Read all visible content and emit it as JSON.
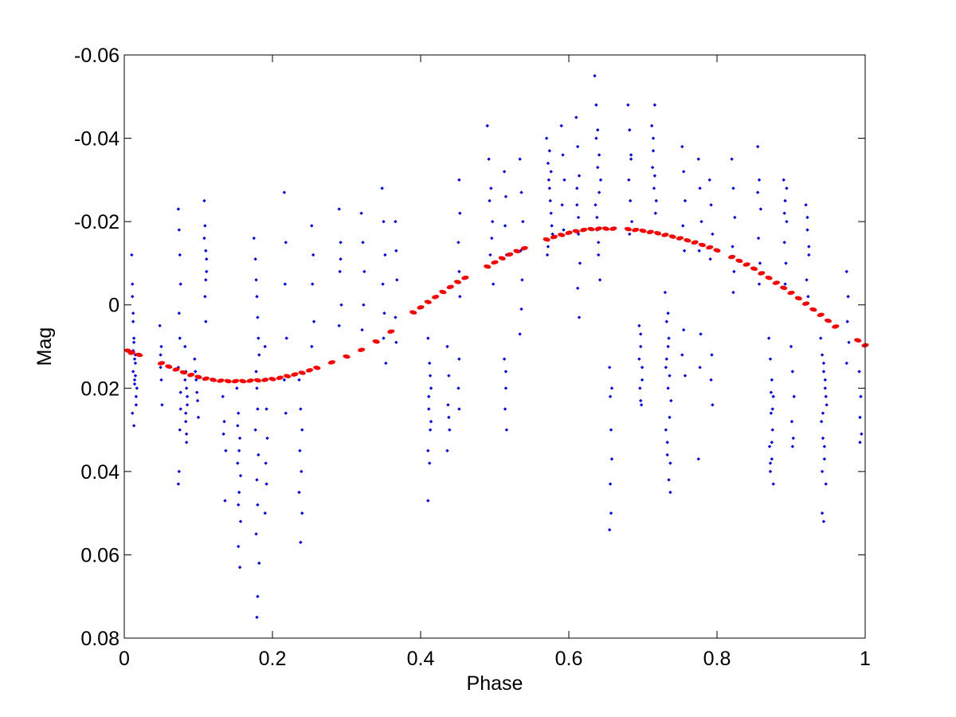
{
  "chart_data": {
    "type": "scatter",
    "title": "",
    "xlabel": "Phase",
    "ylabel": "Mag",
    "xlim": [
      0,
      1
    ],
    "ylim": [
      -0.06,
      0.08
    ],
    "y_reversed": true,
    "grid": false,
    "x_ticks": [
      0,
      0.2,
      0.4,
      0.6,
      0.8,
      1
    ],
    "x_tick_labels": [
      "0",
      "0.2",
      "0.4",
      "0.6",
      "0.8",
      "1"
    ],
    "y_ticks": [
      -0.06,
      -0.04,
      -0.02,
      0,
      0.02,
      0.04,
      0.06,
      0.08
    ],
    "y_tick_labels": [
      "-0.06",
      "-0.04",
      "-0.02",
      "0",
      "0.02",
      "0.04",
      "0.06",
      "0.08"
    ],
    "colors": {
      "observations": "#0000ff",
      "fit": "#ff0000",
      "axes": "#000000"
    },
    "series": [
      {
        "marker": "dot",
        "color": "#0000ff",
        "x": [
          0.01,
          0.011,
          0.012,
          0.013,
          0.015,
          0.012,
          0.014,
          0.016,
          0.011,
          0.013,
          0.012,
          0.015,
          0.014,
          0.017,
          0.013,
          0.012,
          0.011,
          0.016,
          0.015,
          0.014,
          0.048,
          0.049,
          0.05,
          0.051,
          0.049,
          0.05,
          0.073,
          0.074,
          0.075,
          0.076,
          0.074,
          0.075,
          0.073,
          0.076,
          0.075,
          0.074,
          0.073,
          0.076,
          0.082,
          0.083,
          0.084,
          0.085,
          0.083,
          0.084,
          0.082,
          0.085,
          0.083,
          0.084,
          0.095,
          0.097,
          0.099,
          0.1,
          0.098,
          0.096,
          0.108,
          0.109,
          0.11,
          0.111,
          0.109,
          0.11,
          0.108,
          0.111,
          0.11,
          0.133,
          0.135,
          0.137,
          0.134,
          0.136,
          0.152,
          0.154,
          0.156,
          0.153,
          0.155,
          0.157,
          0.154,
          0.156,
          0.153,
          0.155,
          0.157,
          0.154,
          0.175,
          0.177,
          0.178,
          0.179,
          0.18,
          0.181,
          0.182,
          0.178,
          0.179,
          0.18,
          0.177,
          0.181,
          0.179,
          0.18,
          0.178,
          0.182,
          0.18,
          0.179,
          0.19,
          0.191,
          0.192,
          0.193,
          0.191,
          0.192,
          0.19,
          0.216,
          0.218,
          0.217,
          0.219,
          0.216,
          0.218,
          0.236,
          0.238,
          0.24,
          0.237,
          0.239,
          0.236,
          0.24,
          0.238,
          0.253,
          0.255,
          0.254,
          0.256,
          0.253,
          0.29,
          0.292,
          0.291,
          0.293,
          0.29,
          0.292,
          0.32,
          0.322,
          0.324,
          0.323,
          0.321,
          0.348,
          0.35,
          0.352,
          0.349,
          0.351,
          0.35,
          0.353,
          0.366,
          0.367,
          0.368,
          0.366,
          0.367,
          0.41,
          0.412,
          0.414,
          0.411,
          0.413,
          0.41,
          0.412,
          0.414,
          0.411,
          0.413,
          0.41,
          0.436,
          0.438,
          0.437,
          0.439,
          0.436,
          0.438,
          0.452,
          0.453,
          0.451,
          0.452,
          0.453,
          0.452,
          0.451,
          0.452,
          0.49,
          0.492,
          0.495,
          0.497,
          0.493,
          0.496,
          0.494,
          0.498,
          0.513,
          0.515,
          0.514,
          0.516,
          0.513,
          0.515,
          0.514,
          0.516,
          0.515,
          0.534,
          0.536,
          0.538,
          0.535,
          0.537,
          0.536,
          0.534,
          0.57,
          0.572,
          0.574,
          0.576,
          0.578,
          0.571,
          0.573,
          0.575,
          0.577,
          0.572,
          0.574,
          0.576,
          0.59,
          0.592,
          0.594,
          0.591,
          0.593,
          0.61,
          0.612,
          0.614,
          0.611,
          0.613,
          0.615,
          0.612,
          0.614,
          0.611,
          0.613,
          0.635,
          0.637,
          0.639,
          0.641,
          0.643,
          0.636,
          0.638,
          0.64,
          0.642,
          0.637,
          0.639,
          0.641,
          0.638,
          0.64,
          0.655,
          0.656,
          0.657,
          0.658,
          0.656,
          0.657,
          0.655,
          0.658,
          0.68,
          0.682,
          0.684,
          0.681,
          0.683,
          0.685,
          0.682,
          0.684,
          0.695,
          0.697,
          0.699,
          0.696,
          0.698,
          0.697,
          0.695,
          0.699,
          0.697,
          0.712,
          0.714,
          0.716,
          0.718,
          0.713,
          0.715,
          0.717,
          0.714,
          0.716,
          0.73,
          0.732,
          0.734,
          0.736,
          0.738,
          0.731,
          0.733,
          0.735,
          0.737,
          0.732,
          0.734,
          0.736,
          0.733,
          0.735,
          0.731,
          0.737,
          0.734,
          0.753,
          0.755,
          0.757,
          0.754,
          0.756,
          0.755,
          0.753,
          0.757,
          0.775,
          0.777,
          0.779,
          0.776,
          0.778,
          0.777,
          0.775,
          0.79,
          0.792,
          0.794,
          0.791,
          0.793,
          0.792,
          0.794,
          0.82,
          0.822,
          0.824,
          0.821,
          0.823,
          0.822,
          0.855,
          0.857,
          0.859,
          0.856,
          0.858,
          0.857,
          0.855,
          0.87,
          0.872,
          0.874,
          0.876,
          0.873,
          0.875,
          0.871,
          0.874,
          0.872,
          0.876,
          0.873,
          0.875,
          0.874,
          0.872,
          0.89,
          0.892,
          0.894,
          0.891,
          0.893,
          0.892,
          0.894,
          0.891,
          0.9,
          0.902,
          0.904,
          0.901,
          0.903,
          0.902,
          0.92,
          0.922,
          0.924,
          0.921,
          0.923,
          0.922,
          0.924,
          0.94,
          0.942,
          0.944,
          0.946,
          0.948,
          0.941,
          0.943,
          0.945,
          0.947,
          0.942,
          0.944,
          0.946,
          0.943,
          0.945,
          0.944,
          0.947,
          0.942,
          0.975,
          0.977,
          0.976,
          0.978,
          0.975,
          0.992,
          0.994,
          0.993,
          0.995,
          0.993
        ],
        "y": [
          -0.012,
          -0.005,
          0.002,
          0.008,
          0.012,
          0.016,
          0.019,
          0.022,
          0.026,
          0.029,
          0.011,
          0.014,
          0.018,
          0.02,
          0.009,
          0.004,
          -0.002,
          0.024,
          0.017,
          0.013,
          0.005,
          0.012,
          0.018,
          0.024,
          0.015,
          0.01,
          -0.023,
          -0.018,
          -0.012,
          -0.005,
          0.002,
          0.008,
          0.015,
          0.021,
          0.03,
          0.04,
          0.043,
          0.025,
          0.01,
          0.016,
          0.02,
          0.024,
          0.028,
          0.033,
          0.018,
          0.022,
          0.026,
          0.031,
          0.013,
          0.018,
          0.023,
          0.027,
          0.021,
          0.016,
          -0.025,
          -0.019,
          -0.013,
          -0.008,
          -0.002,
          0.004,
          -0.016,
          -0.011,
          -0.006,
          0.022,
          0.028,
          0.035,
          0.031,
          0.047,
          0.02,
          0.026,
          0.032,
          0.038,
          0.045,
          0.052,
          0.058,
          0.063,
          0.029,
          0.035,
          0.041,
          0.048,
          -0.016,
          -0.011,
          -0.006,
          -0.002,
          0.003,
          0.008,
          0.012,
          0.016,
          0.02,
          0.025,
          0.03,
          0.036,
          0.042,
          0.048,
          0.055,
          0.062,
          0.07,
          0.075,
          0.01,
          0.018,
          0.025,
          0.032,
          0.038,
          0.043,
          0.05,
          -0.027,
          -0.015,
          -0.005,
          0.008,
          0.018,
          0.026,
          0.018,
          0.025,
          0.03,
          0.035,
          0.04,
          0.045,
          0.05,
          0.057,
          -0.019,
          -0.012,
          -0.005,
          0.004,
          0.01,
          -0.023,
          -0.015,
          -0.008,
          0.0,
          0.005,
          -0.011,
          -0.022,
          -0.015,
          -0.008,
          0.0,
          0.006,
          -0.028,
          -0.02,
          -0.012,
          -0.005,
          0.002,
          0.008,
          0.014,
          -0.02,
          -0.013,
          -0.006,
          0.003,
          0.009,
          0.008,
          0.014,
          0.02,
          0.025,
          0.03,
          0.035,
          0.038,
          0.028,
          0.022,
          0.017,
          0.047,
          0.01,
          0.017,
          0.024,
          0.03,
          0.035,
          0.027,
          -0.03,
          -0.022,
          -0.015,
          -0.008,
          -0.002,
          0.013,
          0.02,
          0.025,
          -0.043,
          -0.035,
          -0.028,
          -0.02,
          -0.025,
          -0.016,
          -0.012,
          -0.005,
          -0.032,
          -0.026,
          -0.019,
          -0.012,
          0.013,
          0.02,
          0.025,
          0.03,
          0.016,
          -0.035,
          -0.027,
          -0.02,
          -0.013,
          -0.006,
          0.001,
          0.007,
          -0.04,
          -0.034,
          -0.028,
          -0.022,
          -0.017,
          -0.012,
          -0.03,
          -0.025,
          -0.019,
          -0.014,
          -0.037,
          -0.032,
          -0.043,
          -0.036,
          -0.03,
          -0.024,
          -0.018,
          -0.045,
          -0.038,
          -0.031,
          -0.024,
          -0.017,
          -0.01,
          -0.004,
          0.003,
          -0.028,
          -0.021,
          -0.055,
          -0.048,
          -0.042,
          -0.036,
          -0.03,
          -0.024,
          -0.018,
          -0.012,
          -0.006,
          -0.04,
          -0.033,
          -0.027,
          -0.021,
          -0.015,
          0.015,
          0.022,
          0.03,
          0.037,
          0.043,
          0.05,
          0.054,
          0.02,
          -0.048,
          -0.042,
          -0.036,
          -0.03,
          -0.025,
          -0.02,
          -0.017,
          -0.035,
          0.005,
          0.01,
          0.015,
          0.02,
          0.024,
          0.007,
          0.013,
          0.018,
          0.023,
          -0.043,
          -0.037,
          -0.031,
          -0.025,
          -0.033,
          -0.028,
          -0.022,
          -0.04,
          -0.048,
          -0.003,
          0.004,
          0.01,
          0.017,
          0.023,
          0.03,
          0.036,
          0.042,
          0.045,
          0.013,
          0.02,
          0.027,
          0.033,
          0.008,
          0.015,
          0.038,
          0.002,
          -0.038,
          -0.032,
          -0.025,
          -0.019,
          -0.013,
          0.006,
          0.012,
          0.017,
          -0.035,
          -0.028,
          -0.02,
          -0.013,
          0.007,
          0.015,
          0.037,
          -0.03,
          -0.024,
          -0.017,
          -0.011,
          0.012,
          0.018,
          0.024,
          -0.035,
          -0.028,
          -0.021,
          -0.014,
          -0.008,
          -0.003,
          -0.038,
          -0.03,
          -0.023,
          -0.016,
          -0.01,
          -0.005,
          -0.027,
          0.008,
          0.013,
          0.018,
          0.022,
          0.026,
          0.03,
          0.034,
          0.037,
          0.04,
          0.043,
          0.021,
          0.025,
          0.033,
          0.038,
          -0.03,
          -0.025,
          -0.02,
          -0.015,
          -0.01,
          -0.005,
          -0.028,
          -0.022,
          0.01,
          0.016,
          0.022,
          0.028,
          0.032,
          0.034,
          -0.024,
          -0.018,
          -0.012,
          -0.006,
          -0.002,
          -0.021,
          -0.014,
          0.008,
          0.012,
          0.016,
          0.02,
          0.024,
          0.028,
          0.032,
          0.037,
          0.043,
          0.05,
          0.052,
          0.018,
          0.026,
          0.034,
          0.014,
          0.022,
          0.04,
          -0.008,
          -0.002,
          0.004,
          0.009,
          0.014,
          0.016,
          0.022,
          0.027,
          0.031,
          0.033
        ]
      },
      {
        "marker": "fit",
        "color": "#ff0000",
        "x": [
          0.005,
          0.01,
          0.02,
          0.05,
          0.06,
          0.07,
          0.08,
          0.09,
          0.1,
          0.11,
          0.12,
          0.13,
          0.14,
          0.15,
          0.16,
          0.17,
          0.18,
          0.19,
          0.2,
          0.21,
          0.22,
          0.23,
          0.24,
          0.25,
          0.26,
          0.28,
          0.3,
          0.32,
          0.34,
          0.36,
          0.39,
          0.4,
          0.41,
          0.42,
          0.43,
          0.44,
          0.45,
          0.46,
          0.49,
          0.5,
          0.51,
          0.52,
          0.53,
          0.54,
          0.57,
          0.58,
          0.59,
          0.6,
          0.61,
          0.62,
          0.63,
          0.64,
          0.65,
          0.66,
          0.68,
          0.69,
          0.7,
          0.71,
          0.72,
          0.73,
          0.74,
          0.75,
          0.76,
          0.77,
          0.78,
          0.79,
          0.8,
          0.82,
          0.83,
          0.84,
          0.85,
          0.86,
          0.87,
          0.88,
          0.89,
          0.9,
          0.91,
          0.92,
          0.93,
          0.94,
          0.95,
          0.96,
          0.99,
          1.0
        ],
        "y": [
          0.011,
          0.0115,
          0.012,
          0.014,
          0.0148,
          0.0155,
          0.0162,
          0.0168,
          0.0173,
          0.0177,
          0.018,
          0.0182,
          0.0183,
          0.0183,
          0.0183,
          0.0182,
          0.0181,
          0.018,
          0.0178,
          0.0175,
          0.0171,
          0.0167,
          0.0163,
          0.0157,
          0.0151,
          0.0138,
          0.0124,
          0.0108,
          0.0088,
          0.0064,
          0.0018,
          0.0006,
          -0.0007,
          -0.0019,
          -0.0031,
          -0.0043,
          -0.0055,
          -0.0065,
          -0.0092,
          -0.0102,
          -0.0112,
          -0.0121,
          -0.0129,
          -0.0136,
          -0.0157,
          -0.0163,
          -0.0168,
          -0.0173,
          -0.0177,
          -0.018,
          -0.0182,
          -0.0183,
          -0.0183,
          -0.0183,
          -0.0182,
          -0.018,
          -0.0178,
          -0.0175,
          -0.0172,
          -0.0168,
          -0.0164,
          -0.016,
          -0.0155,
          -0.015,
          -0.0144,
          -0.0138,
          -0.0131,
          -0.0115,
          -0.0106,
          -0.0097,
          -0.0087,
          -0.0076,
          -0.0065,
          -0.0053,
          -0.0041,
          -0.0029,
          -0.0016,
          -0.0003,
          0.0011,
          0.0024,
          0.0038,
          0.0052,
          0.0085,
          0.0097
        ]
      }
    ]
  }
}
